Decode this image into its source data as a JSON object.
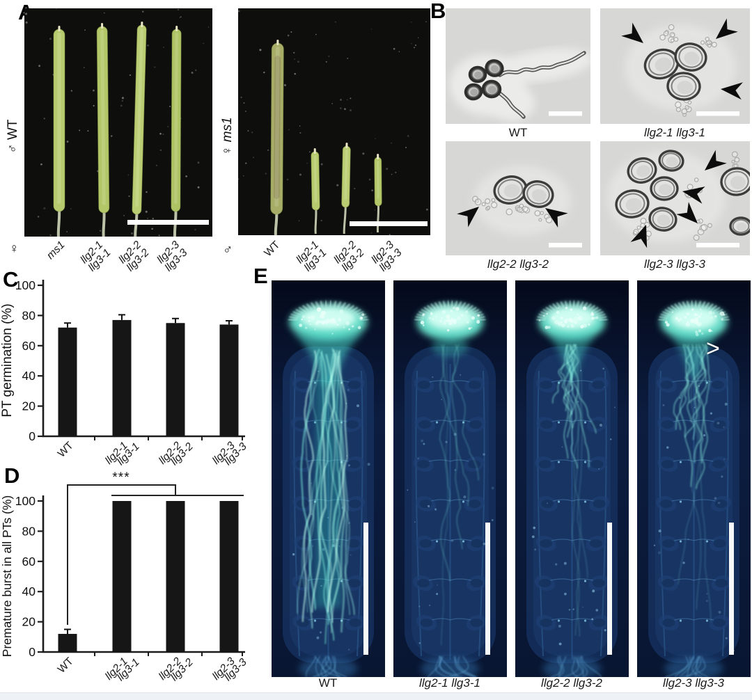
{
  "figure": {
    "background": "#ffffff",
    "footer_color": "#eef1f5"
  },
  "panels": {
    "a": {
      "letter": "A",
      "left": {
        "side_symbol": "♂",
        "side_name": "WT",
        "side_name_italic": false,
        "bottom_symbol": "♀",
        "x_labels": [
          {
            "lines": [
              "ms1"
            ],
            "italic": true
          },
          {
            "lines": [
              "llg2-1",
              "llg3-1"
            ],
            "italic": true
          },
          {
            "lines": [
              "llg2-2",
              "llg3-2"
            ],
            "italic": true
          },
          {
            "lines": [
              "llg2-3",
              "llg3-3"
            ],
            "italic": true
          }
        ]
      },
      "right": {
        "side_symbol": "♀",
        "side_name": "ms1",
        "side_name_italic": true,
        "bottom_symbol": "♂",
        "x_labels": [
          {
            "lines": [
              "WT"
            ],
            "italic": false
          },
          {
            "lines": [
              "llg2-1",
              "llg3-1"
            ],
            "italic": true
          },
          {
            "lines": [
              "llg2-2",
              "llg3-2"
            ],
            "italic": true
          },
          {
            "lines": [
              "llg2-3",
              "llg3-3"
            ],
            "italic": true
          }
        ]
      }
    },
    "b": {
      "letter": "B",
      "images": [
        {
          "caption": "WT",
          "italic": false,
          "arrows": 0
        },
        {
          "caption": "llg2-1 llg3-1",
          "italic": true,
          "arrows": 3
        },
        {
          "caption": "llg2-2 llg3-2",
          "italic": true,
          "arrows": 2
        },
        {
          "caption": "llg2-3 llg3-3",
          "italic": true,
          "arrows": 4
        }
      ]
    },
    "c": {
      "letter": "C"
    },
    "d": {
      "letter": "D"
    },
    "e": {
      "letter": "E",
      "images": [
        {
          "caption": "WT",
          "italic": false,
          "tubes": "high"
        },
        {
          "caption": "llg2-1 llg3-1",
          "italic": true,
          "tubes": "low"
        },
        {
          "caption": "llg2-2 llg3-2",
          "italic": true,
          "tubes": "medium"
        },
        {
          "caption": "llg2-3 llg3-3",
          "italic": true,
          "tubes": "medium"
        }
      ],
      "chevron": ">"
    }
  },
  "chart_data": [
    {
      "panel": "C",
      "type": "bar",
      "title": "",
      "xlabel": "",
      "ylabel": "PT germination (%)",
      "ylim": [
        0,
        100
      ],
      "yticks": [
        0,
        20,
        40,
        60,
        80,
        100
      ],
      "grid": false,
      "legend": null,
      "categories": [
        {
          "lines": [
            "WT"
          ],
          "italic": false
        },
        {
          "lines": [
            "llg2-1",
            "llg3-1"
          ],
          "italic": true
        },
        {
          "lines": [
            "llg2-2",
            "llg3-2"
          ],
          "italic": true
        },
        {
          "lines": [
            "llg2-3",
            "llg3-3"
          ],
          "italic": true
        }
      ],
      "values": [
        72,
        77,
        75,
        74
      ],
      "errors": [
        3,
        3.5,
        3,
        2.5
      ],
      "bar_color": "#161616"
    },
    {
      "panel": "D",
      "type": "bar",
      "title": "",
      "xlabel": "",
      "ylabel": "Premature burst in all PTs (%)",
      "ylim": [
        0,
        100
      ],
      "yticks": [
        0,
        20,
        40,
        60,
        80,
        100
      ],
      "grid": false,
      "legend": null,
      "categories": [
        {
          "lines": [
            "WT"
          ],
          "italic": false
        },
        {
          "lines": [
            "llg2-1",
            "llg3-1"
          ],
          "italic": true
        },
        {
          "lines": [
            "llg2-2",
            "llg3-2"
          ],
          "italic": true
        },
        {
          "lines": [
            "llg2-3",
            "llg3-3"
          ],
          "italic": true
        }
      ],
      "values": [
        12,
        100,
        100,
        100
      ],
      "errors": [
        3,
        0,
        0,
        0
      ],
      "significance": {
        "label": "***",
        "from": "WT",
        "to": [
          "llg2-1 llg3-1",
          "llg2-2 llg3-2",
          "llg2-3 llg3-3"
        ]
      },
      "bar_color": "#161616"
    }
  ]
}
